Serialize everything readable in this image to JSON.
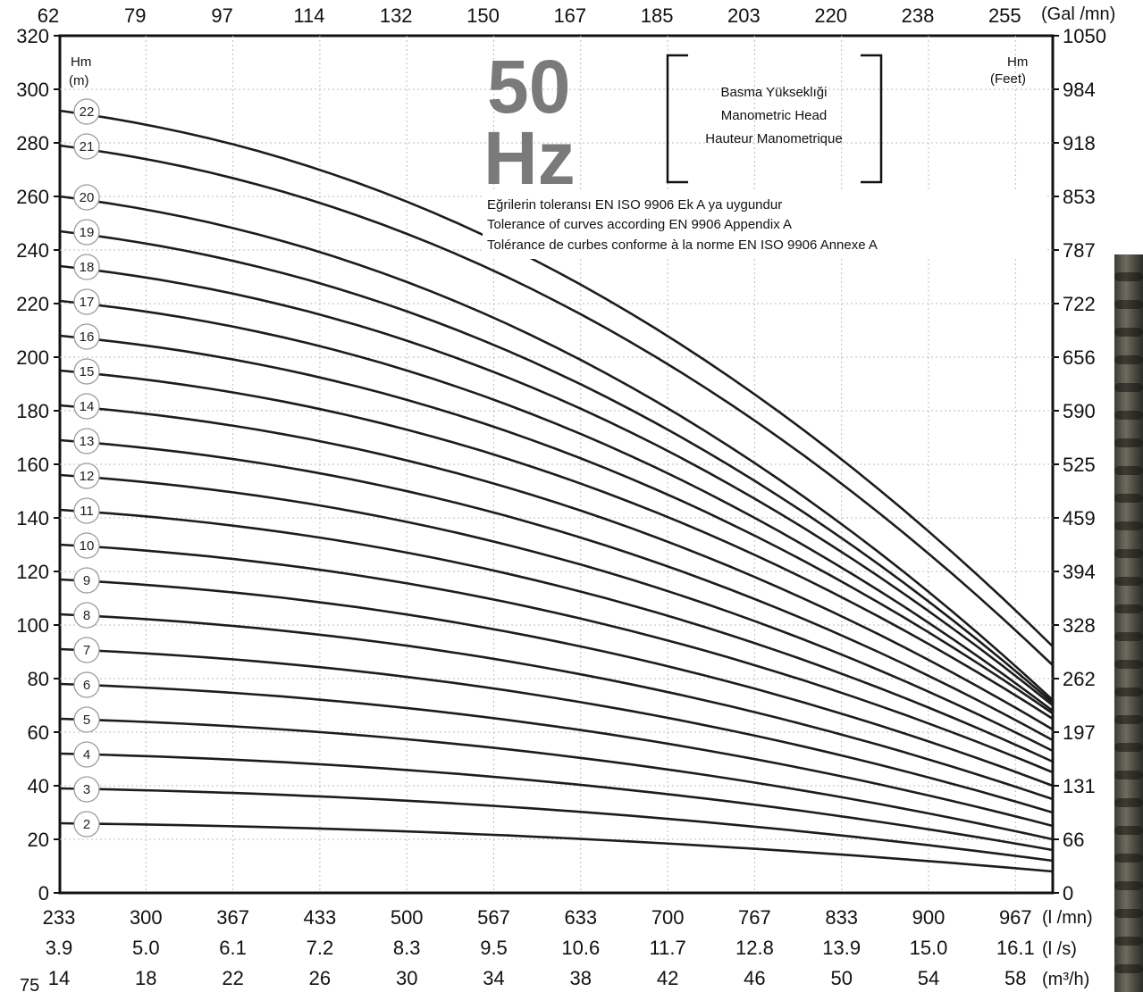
{
  "chart_data": {
    "type": "line",
    "big_title_line1": "50",
    "big_title_line2": "Hz",
    "caption": [
      "Basma Yükseklıği",
      "Manometric Head",
      "Hauteur Manometrique"
    ],
    "tolerance_notes": [
      "Eğrilerin toleransı EN ISO 9906 Ek A ya uygundur",
      "Tolerance of curves according EN 9906 Appendix A",
      "Tolérance de curbes conforme à la norme EN ISO 9906 Annexe A"
    ],
    "y_left_label": [
      "Hm",
      "(m)"
    ],
    "y_right_label": [
      "Hm",
      "(Feet)"
    ],
    "ylim": [
      0,
      320
    ],
    "y_left_ticks": [
      0,
      20,
      40,
      60,
      80,
      100,
      120,
      140,
      160,
      180,
      200,
      220,
      240,
      260,
      280,
      300,
      320
    ],
    "y_right_ticks": [
      "0",
      "66",
      "131",
      "197",
      "262",
      "328",
      "394",
      "459",
      "525",
      "590",
      "656",
      "722",
      "787",
      "853",
      "918",
      "984",
      "1050"
    ],
    "top_axis": {
      "unit": "(Gal /mn)",
      "ticks": [
        "62",
        "79",
        "97",
        "114",
        "132",
        "150",
        "167",
        "185",
        "203",
        "220",
        "238",
        "255"
      ]
    },
    "x_lmn": {
      "unit": "(l /mn)",
      "ticks": [
        "233",
        "300",
        "367",
        "433",
        "500",
        "567",
        "633",
        "700",
        "767",
        "833",
        "900",
        "967"
      ]
    },
    "x_ls": {
      "unit": "(l /s)",
      "ticks": [
        "3.9",
        "5.0",
        "6.1",
        "7.2",
        "8.3",
        "9.5",
        "10.6",
        "11.7",
        "12.8",
        "13.9",
        "15.0",
        "16.1"
      ]
    },
    "x_m3h": {
      "unit": "(m³/h)",
      "ticks": [
        "14",
        "18",
        "22",
        "26",
        "30",
        "34",
        "38",
        "42",
        "46",
        "50",
        "54",
        "58"
      ]
    },
    "corner_label": "75",
    "xlim_lmn": [
      200,
      1034
    ],
    "series": [
      {
        "name": "2",
        "y_start": 26,
        "y_end": 8
      },
      {
        "name": "3",
        "y_start": 39,
        "y_end": 12
      },
      {
        "name": "4",
        "y_start": 52,
        "y_end": 16
      },
      {
        "name": "5",
        "y_start": 65,
        "y_end": 20
      },
      {
        "name": "6",
        "y_start": 78,
        "y_end": 25
      },
      {
        "name": "7",
        "y_start": 91,
        "y_end": 30
      },
      {
        "name": "8",
        "y_start": 104,
        "y_end": 35
      },
      {
        "name": "9",
        "y_start": 117,
        "y_end": 40
      },
      {
        "name": "10",
        "y_start": 130,
        "y_end": 45
      },
      {
        "name": "11",
        "y_start": 143,
        "y_end": 49
      },
      {
        "name": "12",
        "y_start": 156,
        "y_end": 53
      },
      {
        "name": "13",
        "y_start": 169,
        "y_end": 57
      },
      {
        "name": "14",
        "y_start": 182,
        "y_end": 61
      },
      {
        "name": "15",
        "y_start": 195,
        "y_end": 65
      },
      {
        "name": "16",
        "y_start": 208,
        "y_end": 67
      },
      {
        "name": "17",
        "y_start": 221,
        "y_end": 68
      },
      {
        "name": "18",
        "y_start": 234,
        "y_end": 70
      },
      {
        "name": "19",
        "y_start": 247,
        "y_end": 71
      },
      {
        "name": "20",
        "y_start": 260,
        "y_end": 72
      },
      {
        "name": "21",
        "y_start": 279,
        "y_end": 85
      },
      {
        "name": "22",
        "y_start": 292,
        "y_end": 92
      }
    ]
  }
}
